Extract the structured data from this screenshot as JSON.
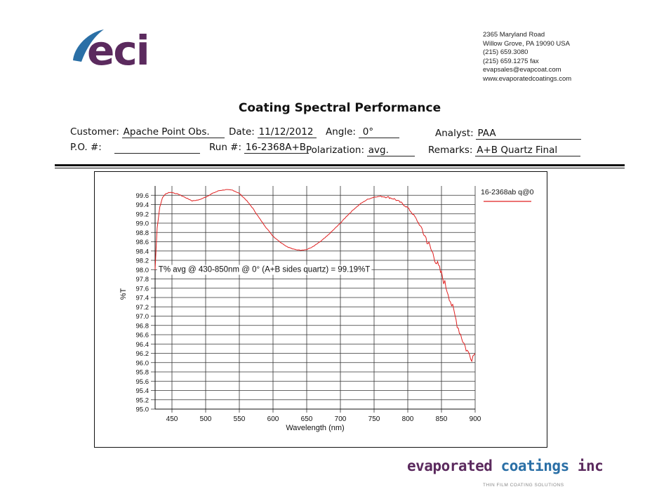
{
  "header": {
    "logo_text": "eci",
    "address_lines": [
      "2365 Maryland Road",
      "Willow Grove, PA 19090  USA",
      "(215) 659.3080",
      "(215) 659.1275 fax",
      "evapsales@evapcoat.com",
      "www.evaporatedcoatings.com"
    ],
    "brand_colors": {
      "purple": "#5b2a5e",
      "blue": "#2a6fa6"
    }
  },
  "report": {
    "title": "Coating Spectral Performance",
    "customer_label": "Customer:",
    "customer": "Apache Point Obs.",
    "date_label": "Date:",
    "date": "11/12/2012",
    "angle_label": "Angle:",
    "angle": "0°",
    "analyst_label": "Analyst:",
    "analyst": "PAA",
    "po_label": "P.O. #:",
    "po": "",
    "run_label": "Run #:",
    "run": "16-2368A+B",
    "polarization_label": "Polarization:",
    "polarization": "avg.",
    "remarks_label": "Remarks:",
    "remarks": "A+B Quartz Final"
  },
  "chart_data": {
    "type": "line",
    "title": "",
    "xlabel": "Wavelength (nm)",
    "ylabel": "%T",
    "xlim": [
      425,
      900
    ],
    "ylim": [
      95.0,
      99.8
    ],
    "x_ticks": [
      450,
      500,
      550,
      600,
      650,
      700,
      750,
      800,
      850,
      900
    ],
    "y_ticks": [
      95.0,
      95.2,
      95.4,
      95.6,
      95.8,
      96.0,
      96.2,
      96.4,
      96.6,
      96.8,
      97.0,
      97.2,
      97.4,
      97.6,
      97.8,
      98.0,
      98.2,
      98.4,
      98.6,
      98.8,
      99.0,
      99.2,
      99.4,
      99.6
    ],
    "grid": true,
    "legend_position": "top-right",
    "annotation": "T% avg @ 430-850nm @ 0° (A+B sides quartz) = 99.19%T",
    "series_color": "#e02020",
    "series": [
      {
        "name": "16-2368ab q@0",
        "x": [
          425,
          428,
          432,
          436,
          440,
          445,
          450,
          460,
          470,
          480,
          490,
          500,
          510,
          520,
          530,
          540,
          550,
          560,
          570,
          580,
          590,
          600,
          610,
          620,
          630,
          640,
          650,
          660,
          670,
          680,
          690,
          700,
          710,
          720,
          730,
          740,
          750,
          760,
          770,
          780,
          790,
          800,
          810,
          820,
          830,
          840,
          850,
          855,
          860,
          865,
          870,
          875,
          880,
          885,
          890,
          895,
          900
        ],
        "y": [
          98.0,
          98.9,
          99.35,
          99.55,
          99.62,
          99.66,
          99.66,
          99.62,
          99.55,
          99.48,
          99.5,
          99.56,
          99.64,
          99.7,
          99.72,
          99.71,
          99.64,
          99.5,
          99.32,
          99.1,
          98.9,
          98.72,
          98.6,
          98.5,
          98.44,
          98.42,
          98.43,
          98.5,
          98.6,
          98.72,
          98.86,
          99.0,
          99.16,
          99.3,
          99.42,
          99.51,
          99.56,
          99.58,
          99.56,
          99.52,
          99.44,
          99.33,
          99.15,
          98.9,
          98.58,
          98.25,
          97.9,
          97.7,
          97.5,
          97.25,
          97.0,
          96.75,
          96.55,
          96.35,
          96.2,
          96.12,
          96.2
        ]
      }
    ]
  },
  "footer": {
    "company_part1": "evaporated ",
    "company_part2": "coatings",
    "company_part3": " inc",
    "tagline": "THIN FILM COATING SOLUTIONS"
  }
}
